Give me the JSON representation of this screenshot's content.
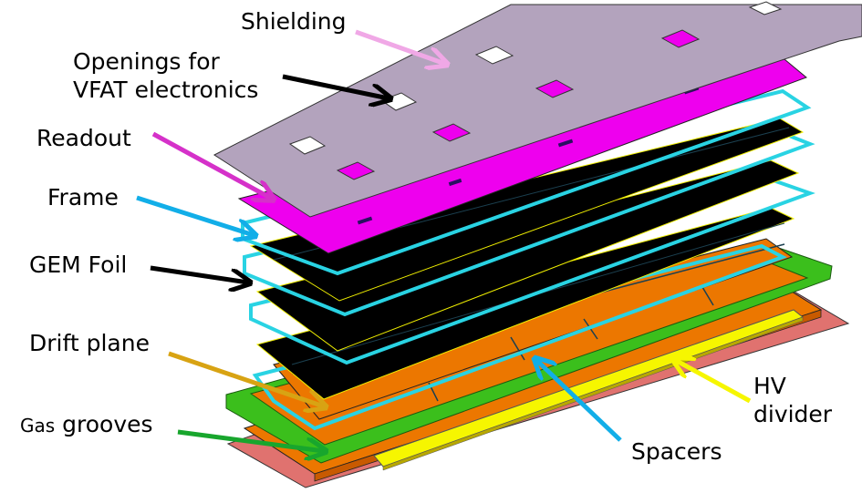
{
  "labels": {
    "shielding": "Shielding",
    "openings_line1": "Openings for",
    "openings_line2": "VFAT electronics",
    "readout": "Readout",
    "frame": "Frame",
    "gem_foil": "GEM Foil",
    "drift_plane": "Drift plane",
    "gas_prefix": "Gas",
    "gas_rest": " grooves",
    "spacers": "Spacers",
    "hv_line1": "HV",
    "hv_line2": "divider"
  },
  "colors": {
    "shielding": "#b3a3bd",
    "readout": "#ee00ee",
    "frame": "#29d3e3",
    "gem_foil": "#000000",
    "foil_edge": "#f0ef00",
    "drift": "#ec7700",
    "gas_base": "#e0726f",
    "green_frame": "#3bbf1c",
    "hv_divider": "#f6f600",
    "arrow_shielding": "#f0a8e6",
    "arrow_openings": "#000000",
    "arrow_readout": "#d531c9",
    "arrow_frame": "#12aee8",
    "arrow_gem": "#000000",
    "arrow_drift": "#d8a313",
    "arrow_gas": "#18a62d",
    "arrow_spacers": "#12aee8",
    "arrow_hv": "#f6f600"
  }
}
